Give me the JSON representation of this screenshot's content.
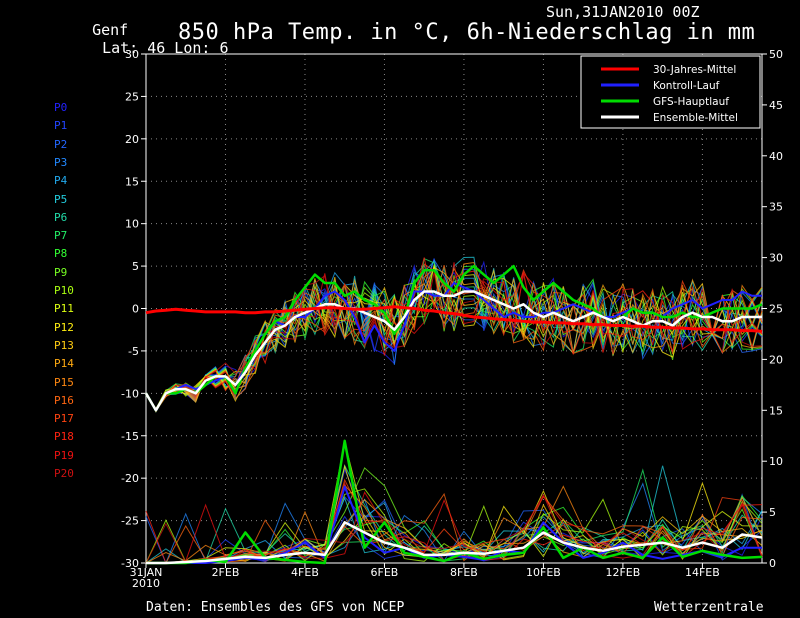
{
  "header": {
    "location": "Genf",
    "coords": "Lat: 46 Lon: 6",
    "run": "Sun,31JAN2010 00Z",
    "title": "850 hPa Temp. in °C, 6h-Niederschlag in mm"
  },
  "footer": {
    "source": "Daten: Ensembles des GFS von NCEP",
    "brand": "Wetterzentrale"
  },
  "members": [
    {
      "label": "P0",
      "color": "#2222ff"
    },
    {
      "label": "P1",
      "color": "#2244ff"
    },
    {
      "label": "P2",
      "color": "#2266ff"
    },
    {
      "label": "P3",
      "color": "#2288ff"
    },
    {
      "label": "P4",
      "color": "#22aaee"
    },
    {
      "label": "P5",
      "color": "#22ccdd"
    },
    {
      "label": "P6",
      "color": "#22ddaa"
    },
    {
      "label": "P7",
      "color": "#22ee66"
    },
    {
      "label": "P8",
      "color": "#33ff33"
    },
    {
      "label": "P9",
      "color": "#77ff22"
    },
    {
      "label": "P10",
      "color": "#aaff11"
    },
    {
      "label": "P11",
      "color": "#ddff11"
    },
    {
      "label": "P12",
      "color": "#ffee11"
    },
    {
      "label": "P13",
      "color": "#ffcc11"
    },
    {
      "label": "P14",
      "color": "#ffaa11"
    },
    {
      "label": "P15",
      "color": "#ff8811"
    },
    {
      "label": "P16",
      "color": "#ff6611"
    },
    {
      "label": "P17",
      "color": "#ff4411"
    },
    {
      "label": "P18",
      "color": "#ff2211"
    },
    {
      "label": "P19",
      "color": "#ee1111"
    },
    {
      "label": "P20",
      "color": "#cc1111"
    }
  ],
  "chart_data": {
    "type": "line",
    "title": "850 hPa Temp. in °C, 6h-Niederschlag in mm",
    "x_unit": "days since 31JAN2010 00Z",
    "xlim": [
      0,
      15.5
    ],
    "x_ticks": [
      0,
      2,
      4,
      6,
      8,
      10,
      12,
      14
    ],
    "x_tick_labels": [
      "31JAN",
      "2FEB",
      "4FEB",
      "6FEB",
      "8FEB",
      "10FEB",
      "12FEB",
      "14FEB"
    ],
    "x_tick_sublabel": "2010",
    "ylim_left": [
      -30,
      30
    ],
    "y_ticks_left": [
      30,
      25,
      20,
      15,
      10,
      5,
      0,
      -5,
      -10,
      -15,
      -20,
      -25,
      -30
    ],
    "ylim_right": [
      0,
      50
    ],
    "y_ticks_right": [
      50,
      45,
      40,
      35,
      30,
      25,
      20,
      15,
      10,
      5,
      0
    ],
    "grid": true,
    "legend": {
      "position": "top-right",
      "entries": [
        {
          "name": "30-Jahres-Mittel",
          "color": "#ff0000"
        },
        {
          "name": "Kontroll-Lauf",
          "color": "#2020ff"
        },
        {
          "name": "GFS-Hauptlauf",
          "color": "#00dd00"
        },
        {
          "name": "Ensemble-Mittel",
          "color": "#ffffff"
        }
      ]
    },
    "temperature": {
      "x": [
        0,
        0.25,
        0.5,
        0.75,
        1,
        1.25,
        1.5,
        1.75,
        2,
        2.25,
        2.5,
        2.75,
        3,
        3.25,
        3.5,
        3.75,
        4,
        4.25,
        4.5,
        4.75,
        5,
        5.25,
        5.5,
        5.75,
        6,
        6.25,
        6.5,
        6.75,
        7,
        7.25,
        7.5,
        7.75,
        8,
        8.25,
        8.5,
        8.75,
        9,
        9.25,
        9.5,
        9.75,
        10,
        10.25,
        10.5,
        10.75,
        11,
        11.25,
        11.5,
        11.75,
        12,
        12.25,
        12.5,
        12.75,
        13,
        13.25,
        13.5,
        13.75,
        14,
        14.25,
        14.5,
        14.75,
        15,
        15.25,
        15.5
      ],
      "climate_mean": [
        -0.5,
        -0.3,
        -0.2,
        -0.1,
        -0.2,
        -0.3,
        -0.4,
        -0.4,
        -0.4,
        -0.4,
        -0.5,
        -0.5,
        -0.4,
        -0.4,
        -0.3,
        -0.2,
        -0.1,
        0,
        0.1,
        0.1,
        0,
        -0.1,
        -0.1,
        0,
        0.1,
        0.2,
        0.1,
        0,
        -0.2,
        -0.3,
        -0.5,
        -0.6,
        -0.8,
        -1.0,
        -1.1,
        -1.2,
        -1.3,
        -1.4,
        -1.5,
        -1.6,
        -1.6,
        -1.7,
        -1.7,
        -1.8,
        -1.8,
        -1.9,
        -1.9,
        -2.0,
        -2.0,
        -2.1,
        -2.1,
        -2.2,
        -2.2,
        -2.3,
        -2.3,
        -2.4,
        -2.4,
        -2.5,
        -2.5,
        -2.5,
        -2.6,
        -2.6,
        -2.7
      ],
      "control": [
        -10,
        -12,
        -10,
        -9.5,
        -9,
        -9.5,
        -9,
        -8.5,
        -8,
        -9,
        -7,
        -5,
        -3,
        -1.5,
        -2,
        -1,
        -1,
        0,
        1.5,
        2,
        1,
        -1,
        -4,
        -2,
        -4,
        -5,
        -2,
        2,
        2,
        1.5,
        1.5,
        3,
        2.5,
        2,
        1,
        0,
        -1,
        -0.5,
        -1,
        -1,
        -0.5,
        -0.5,
        0,
        0.5,
        0,
        -0.5,
        -1,
        -1,
        -0.5,
        0,
        -0.5,
        -0.5,
        -1,
        0,
        0.5,
        1,
        0,
        0.5,
        1,
        1,
        2,
        1.5,
        1.5
      ],
      "gfs_main": [
        -10,
        -12,
        -10,
        -10,
        -9.5,
        -10,
        -9,
        -8,
        -8,
        -10,
        -7,
        -5,
        -3,
        -1.5,
        -1,
        1,
        2.5,
        4,
        3,
        3,
        1.5,
        2,
        1,
        0.5,
        -0.5,
        -3,
        -1,
        3,
        4.5,
        4.5,
        3,
        2,
        4,
        5,
        4,
        3,
        4,
        5,
        2.5,
        1,
        2,
        3,
        2,
        1,
        0.5,
        0,
        -1,
        -1.5,
        -1,
        0,
        -0.5,
        -0.5,
        -1,
        -1,
        -0.5,
        -1,
        -1,
        -0.5,
        0,
        0,
        0,
        0,
        0.5
      ],
      "ensemble_mean": [
        -10,
        -12,
        -10,
        -9.5,
        -9.5,
        -10,
        -8.5,
        -8,
        -8,
        -9,
        -7.5,
        -5.5,
        -4,
        -2.5,
        -2,
        -1,
        -0.5,
        0,
        0.5,
        0.5,
        0,
        0,
        -0.5,
        -1,
        -1.5,
        -2.5,
        -1,
        1,
        2,
        2,
        1.5,
        1.5,
        2,
        2,
        1.5,
        1,
        0.5,
        0,
        0.5,
        -0.5,
        -1,
        -0.5,
        -1,
        -1.5,
        -1,
        -0.5,
        -1,
        -1.5,
        -1,
        -1.5,
        -2,
        -1.5,
        -1.5,
        -2,
        -1,
        -0.5,
        -1,
        -1,
        -1.5,
        -1.5,
        -1,
        -1,
        -1
      ]
    },
    "precipitation_mm": {
      "x": [
        0,
        0.5,
        1,
        1.5,
        2,
        2.5,
        3,
        3.5,
        4,
        4.5,
        5,
        5.5,
        6,
        6.5,
        7,
        7.5,
        8,
        8.5,
        9,
        9.5,
        10,
        10.5,
        11,
        11.5,
        12,
        12.5,
        13,
        13.5,
        14,
        14.5,
        15,
        15.5
      ],
      "control": [
        0,
        0,
        0,
        0,
        0.2,
        0.5,
        0.3,
        1.0,
        2.0,
        0.5,
        7.5,
        2.5,
        1.0,
        1.5,
        0.5,
        0.8,
        0.6,
        0.3,
        1.2,
        1.0,
        4.0,
        2.0,
        0.5,
        1.0,
        2.0,
        0.8,
        0.4,
        0.8,
        1.2,
        0.6,
        1.5,
        1.5
      ],
      "gfs_main": [
        0,
        0,
        0,
        0.3,
        0.1,
        3.0,
        0.5,
        0.3,
        0.1,
        0.0,
        12.0,
        1.5,
        4.0,
        1.0,
        0.6,
        0.2,
        1.0,
        0.4,
        0.8,
        1.0,
        3.5,
        0.5,
        1.5,
        0.5,
        1.0,
        0.5,
        2.5,
        0.6,
        1.2,
        0.8,
        0.5,
        0.6
      ],
      "ensemble_mean": [
        0,
        0,
        0.1,
        0.2,
        0.4,
        0.6,
        0.5,
        0.8,
        1.0,
        0.8,
        4.0,
        3.0,
        2.0,
        1.5,
        0.8,
        0.8,
        1.0,
        0.9,
        1.2,
        1.5,
        3.0,
        2.0,
        1.5,
        1.2,
        1.6,
        1.8,
        2.0,
        1.5,
        2.0,
        1.5,
        2.8,
        2.5
      ]
    }
  }
}
